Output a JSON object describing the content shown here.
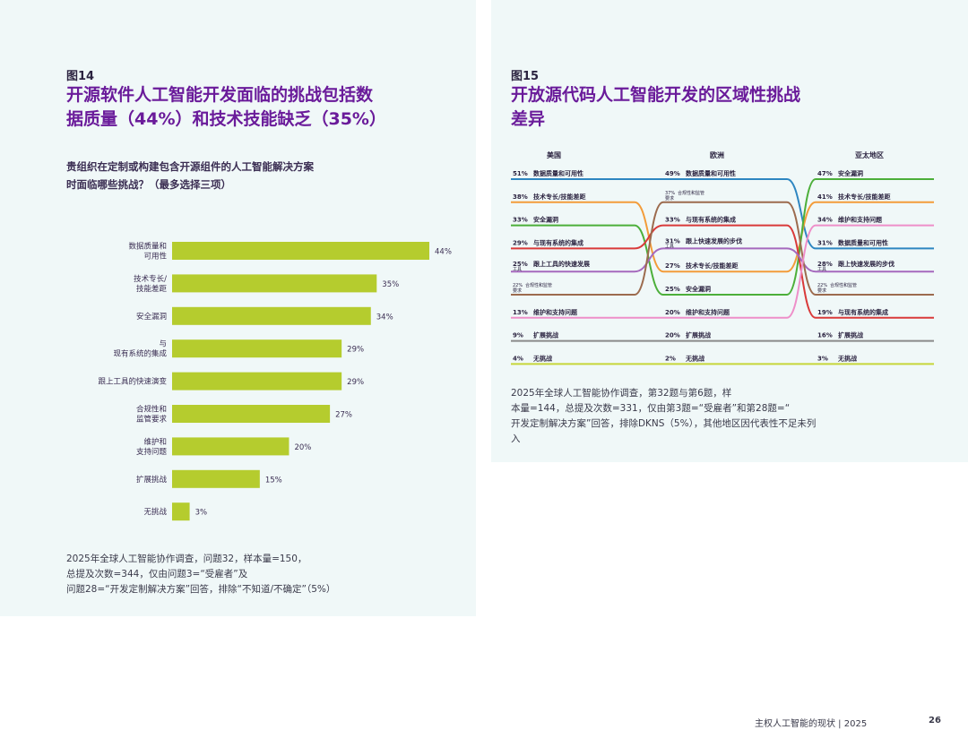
{
  "left": {
    "fig_label": "图14",
    "title_line1": "开源软件人工智能开发面临的挑战包括数",
    "title_line2": "据质量（44%）和技术技能缺乏（35%）",
    "question_line1": "贵组织在定制或构建包含开源组件的人工智能解决方案",
    "question_line2": "时面临哪些挑战？（最多选择三项）",
    "note_line1": "2025年全球人工智能协作调查，问题32，样本量=150，",
    "note_line2": "总提及次数=344，仅由问题3=“受雇者”及",
    "note_line3": "问题28=“开发定制解决方案”回答，排除“不知道/不确定”（5%）"
  },
  "right": {
    "fig_label": "图15",
    "title_line1": "开放源代码人工智能开发的区域性挑战",
    "title_line2": "差异",
    "note_line1": "2025年全球人工智能协作调查，第32题与第6题，样",
    "note_line2": "本量=144，总提及次数=331，仅由第3题=“受雇者”和第28题=“",
    "note_line3": "开发定制解决方案”回答，排除DKNS（5%），其他地区因代表性不足未列",
    "note_line4": "入"
  },
  "footer": {
    "text": "主权人工智能的现状  |  2025",
    "page": "26"
  },
  "colors": {
    "bar": "#b5cc2e",
    "title": "#6a1b9a",
    "panel": "#f0f8f8"
  },
  "chart_data": [
    {
      "type": "bar",
      "orientation": "horizontal",
      "categories": [
        [
          "数据质量和",
          "可用性"
        ],
        [
          "技术专长/",
          "技能差距"
        ],
        [
          "安全漏洞"
        ],
        [
          "与",
          "现有系统的集成"
        ],
        [
          "跟上工具的快速演变"
        ],
        [
          "合规性和",
          "监管要求"
        ],
        [
          "维护和",
          "支持问题"
        ],
        [
          "扩展挑战"
        ],
        [
          "无挑战"
        ]
      ],
      "values": [
        44,
        35,
        34,
        29,
        29,
        27,
        20,
        15,
        3
      ],
      "value_labels": [
        "44%",
        "35%",
        "34%",
        "29%",
        "29%",
        "27%",
        "20%",
        "15%",
        "3%"
      ],
      "xlim": [
        0,
        44
      ]
    },
    {
      "type": "slope",
      "columns": [
        "美国",
        "欧洲",
        "亚太地区"
      ],
      "series": [
        {
          "name": "数据质量和可用性",
          "color": "#2e86c1",
          "values": [
            51,
            49,
            31
          ],
          "labels": [
            [
              "51%",
              "数据质量和可用性"
            ],
            [
              "49%",
              "数据质量和可用性"
            ],
            [
              "31%",
              "数据质量和可用性"
            ]
          ]
        },
        {
          "name": "技术专长/技能差距",
          "color": "#f39c3a",
          "values": [
            38,
            27,
            41
          ],
          "labels": [
            [
              "38%",
              "技术专长/技能差距"
            ],
            [
              "27%",
              "技术专长/技能差距"
            ],
            [
              "41%",
              "技术专长/技能差距"
            ]
          ]
        },
        {
          "name": "安全漏洞",
          "color": "#4caf3a",
          "values": [
            33,
            25,
            47
          ],
          "labels": [
            [
              "33%",
              "安全漏洞"
            ],
            [
              "25%",
              "安全漏洞"
            ],
            [
              "47%",
              "安全漏洞"
            ]
          ]
        },
        {
          "name": "与现有系统的集成",
          "color": "#d93a3a",
          "values": [
            29,
            33,
            19
          ],
          "labels": [
            [
              "29%",
              "与现有系统的集成"
            ],
            [
              "33%",
              "与现有系统的集成"
            ],
            [
              "19%",
              "与现有系统的集成"
            ]
          ]
        },
        {
          "name": "跟上工具的快速发展",
          "color": "#a569bd",
          "values": [
            25,
            31,
            28
          ],
          "labels": [
            [
              "25%",
              "工具",
              "跟上工具的快速发展"
            ],
            [
              "31%",
              "工具",
              "跟上快速发展的步伐"
            ],
            [
              "28%",
              "工具",
              "跟上快速发展的步伐"
            ]
          ]
        },
        {
          "name": "合规性和监管要求",
          "color": "#9c6b4e",
          "values": [
            22,
            37,
            22
          ],
          "labels": [
            [
              "22%",
              "要求",
              "合规性和监管"
            ],
            [
              "37%",
              "要求",
              "合规性和监管"
            ],
            [
              "22%",
              "要求",
              "合规性和监管"
            ]
          ]
        },
        {
          "name": "维护和支持问题",
          "color": "#ee8fc9",
          "values": [
            13,
            20,
            34
          ],
          "labels": [
            [
              "13%",
              "维护和支持问题"
            ],
            [
              "20%",
              "维护和支持问题"
            ],
            [
              "34%",
              "维护和支持问题"
            ]
          ]
        },
        {
          "name": "扩展挑战",
          "color": "#8a8a8a",
          "values": [
            9,
            20,
            16
          ],
          "labels": [
            [
              "9%",
              "扩展挑战"
            ],
            [
              "20%",
              "扩展挑战"
            ],
            [
              "16%",
              "扩展挑战"
            ]
          ]
        },
        {
          "name": "无挑战",
          "color": "#c7d63a",
          "values": [
            4,
            2,
            3
          ],
          "labels": [
            [
              "4%",
              "无挑战"
            ],
            [
              "2%",
              "无挑战"
            ],
            [
              "3%",
              "无挑战"
            ]
          ]
        }
      ],
      "rank_order": {
        "美国": [
          "数据质量和可用性",
          "技术专长/技能差距",
          "安全漏洞",
          "与现有系统的集成",
          "跟上工具的快速发展",
          "合规性和监管要求",
          "维护和支持问题",
          "扩展挑战",
          "无挑战"
        ],
        "欧洲": [
          "数据质量和可用性",
          "合规性和监管要求",
          "与现有系统的集成",
          "跟上工具的快速发展",
          "技术专长/技能差距",
          "安全漏洞",
          "维护和支持问题",
          "扩展挑战",
          "无挑战"
        ],
        "亚太地区": [
          "安全漏洞",
          "技术专长/技能差距",
          "维护和支持问题",
          "数据质量和可用性",
          "跟上工具的快速发展",
          "合规性和监管要求",
          "与现有系统的集成",
          "扩展挑战",
          "无挑战"
        ]
      }
    }
  ]
}
